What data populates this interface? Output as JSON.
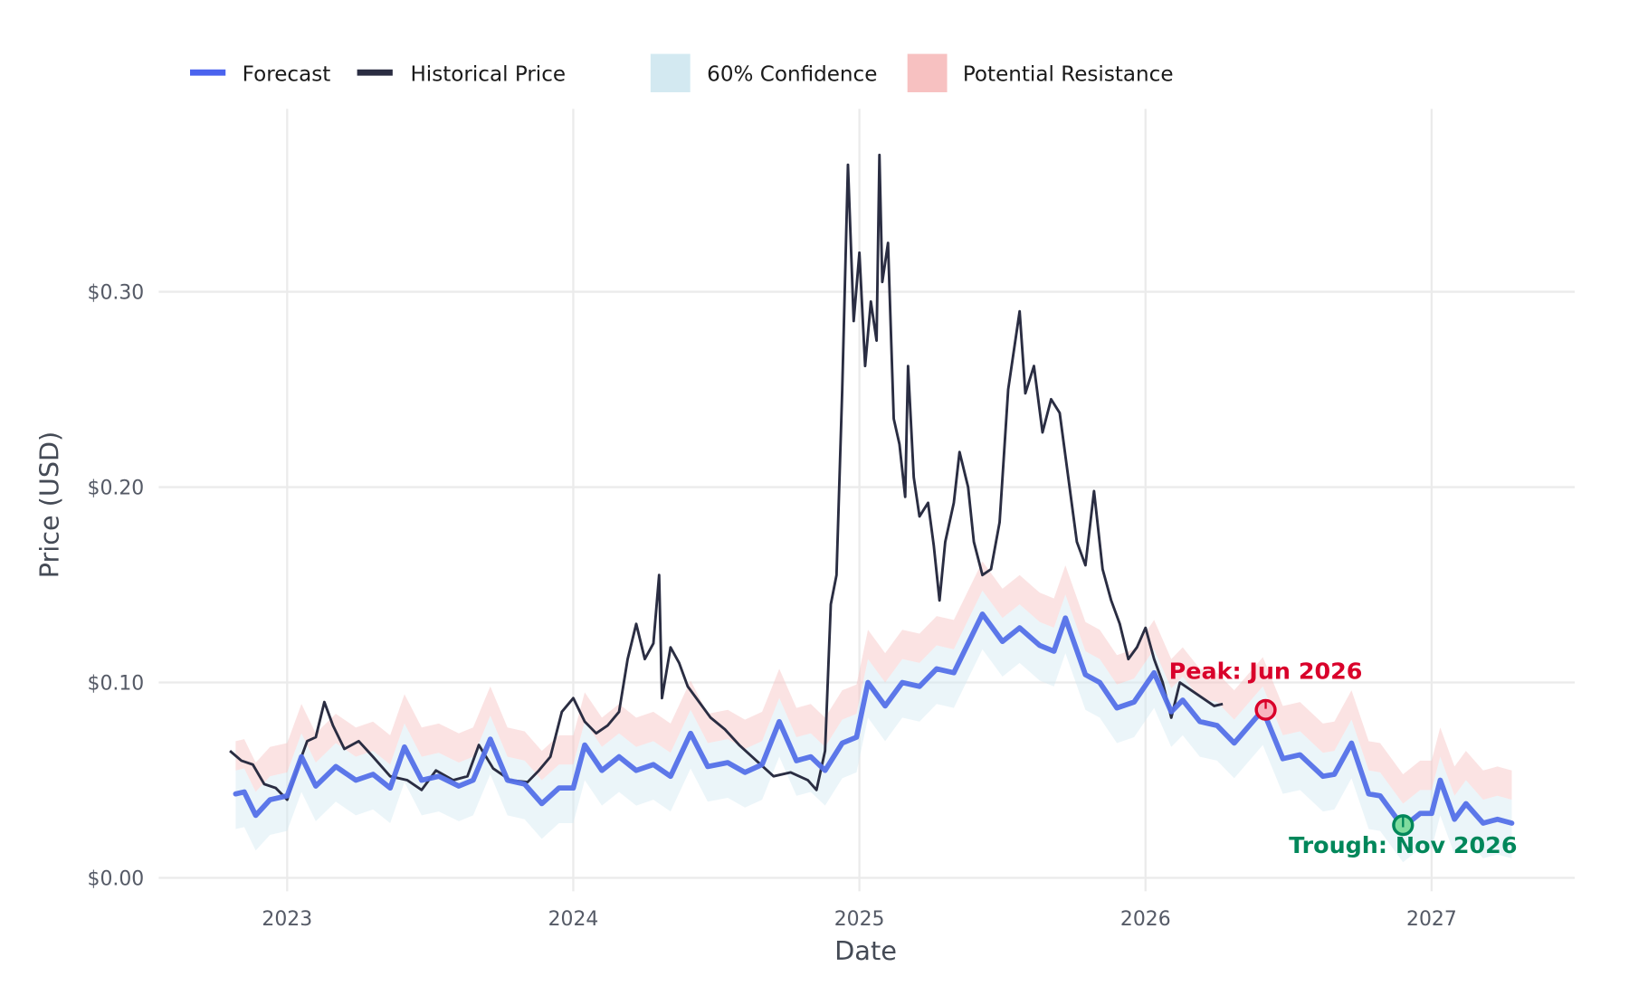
{
  "chart_data": {
    "type": "line",
    "title": "",
    "xlabel": "Date",
    "ylabel": "Price (USD)",
    "xlim": [
      2022.55,
      2027.5
    ],
    "ylim": [
      -0.008,
      0.395
    ],
    "grid": true,
    "legend_placement": "top-left",
    "x_ticks": [
      2023,
      2024,
      2025,
      2026,
      2027
    ],
    "x_tick_labels": [
      "2023",
      "2024",
      "2025",
      "2026",
      "2027"
    ],
    "y_ticks": [
      0,
      0.1,
      0.2,
      0.3
    ],
    "y_tick_labels": [
      "$0.00",
      "$0.10",
      "$0.20",
      "$0.30"
    ],
    "legend": [
      "Forecast",
      "Historical Price",
      "60% Confidence",
      "Potential Resistance"
    ],
    "colors": {
      "forecast": "#5470e8",
      "historical": "#2a2d42",
      "confidence": "#d3e9f1",
      "resistance": "#f7c1c1",
      "peak": "#d9002a",
      "trough": "#00875a"
    },
    "band_offsets": {
      "confidence_lower": -0.018,
      "confidence_upper": 0.012,
      "resistance_upper": 0.027
    },
    "series": [
      {
        "name": "Historical Price",
        "points": [
          [
            2022.8,
            0.065
          ],
          [
            2022.84,
            0.06
          ],
          [
            2022.88,
            0.058
          ],
          [
            2022.92,
            0.048
          ],
          [
            2022.96,
            0.046
          ],
          [
            2023.0,
            0.04
          ],
          [
            2023.04,
            0.058
          ],
          [
            2023.07,
            0.07
          ],
          [
            2023.1,
            0.072
          ],
          [
            2023.13,
            0.09
          ],
          [
            2023.16,
            0.078
          ],
          [
            2023.2,
            0.066
          ],
          [
            2023.25,
            0.07
          ],
          [
            2023.3,
            0.062
          ],
          [
            2023.36,
            0.052
          ],
          [
            2023.42,
            0.05
          ],
          [
            2023.47,
            0.045
          ],
          [
            2023.52,
            0.055
          ],
          [
            2023.58,
            0.05
          ],
          [
            2023.63,
            0.052
          ],
          [
            2023.67,
            0.068
          ],
          [
            2023.72,
            0.056
          ],
          [
            2023.78,
            0.05
          ],
          [
            2023.84,
            0.049
          ],
          [
            2023.88,
            0.055
          ],
          [
            2023.92,
            0.062
          ],
          [
            2023.96,
            0.085
          ],
          [
            2024.0,
            0.092
          ],
          [
            2024.04,
            0.08
          ],
          [
            2024.08,
            0.074
          ],
          [
            2024.12,
            0.078
          ],
          [
            2024.16,
            0.085
          ],
          [
            2024.19,
            0.112
          ],
          [
            2024.22,
            0.13
          ],
          [
            2024.25,
            0.112
          ],
          [
            2024.28,
            0.12
          ],
          [
            2024.3,
            0.155
          ],
          [
            2024.31,
            0.092
          ],
          [
            2024.34,
            0.118
          ],
          [
            2024.37,
            0.11
          ],
          [
            2024.4,
            0.098
          ],
          [
            2024.44,
            0.09
          ],
          [
            2024.48,
            0.082
          ],
          [
            2024.53,
            0.076
          ],
          [
            2024.58,
            0.068
          ],
          [
            2024.64,
            0.06
          ],
          [
            2024.7,
            0.052
          ],
          [
            2024.76,
            0.054
          ],
          [
            2024.82,
            0.05
          ],
          [
            2024.85,
            0.045
          ],
          [
            2024.88,
            0.065
          ],
          [
            2024.9,
            0.14
          ],
          [
            2024.92,
            0.155
          ],
          [
            2024.94,
            0.25
          ],
          [
            2024.96,
            0.365
          ],
          [
            2024.98,
            0.285
          ],
          [
            2025.0,
            0.32
          ],
          [
            2025.02,
            0.262
          ],
          [
            2025.04,
            0.295
          ],
          [
            2025.06,
            0.275
          ],
          [
            2025.07,
            0.37
          ],
          [
            2025.08,
            0.305
          ],
          [
            2025.1,
            0.325
          ],
          [
            2025.12,
            0.235
          ],
          [
            2025.14,
            0.222
          ],
          [
            2025.16,
            0.195
          ],
          [
            2025.17,
            0.262
          ],
          [
            2025.19,
            0.205
          ],
          [
            2025.21,
            0.185
          ],
          [
            2025.24,
            0.192
          ],
          [
            2025.26,
            0.17
          ],
          [
            2025.28,
            0.142
          ],
          [
            2025.3,
            0.172
          ],
          [
            2025.33,
            0.192
          ],
          [
            2025.35,
            0.218
          ],
          [
            2025.38,
            0.2
          ],
          [
            2025.4,
            0.172
          ],
          [
            2025.43,
            0.155
          ],
          [
            2025.46,
            0.158
          ],
          [
            2025.49,
            0.182
          ],
          [
            2025.52,
            0.25
          ],
          [
            2025.54,
            0.27
          ],
          [
            2025.56,
            0.29
          ],
          [
            2025.58,
            0.248
          ],
          [
            2025.61,
            0.262
          ],
          [
            2025.64,
            0.228
          ],
          [
            2025.67,
            0.245
          ],
          [
            2025.7,
            0.238
          ],
          [
            2025.73,
            0.205
          ],
          [
            2025.76,
            0.172
          ],
          [
            2025.79,
            0.16
          ],
          [
            2025.82,
            0.198
          ],
          [
            2025.85,
            0.158
          ],
          [
            2025.88,
            0.142
          ],
          [
            2025.91,
            0.13
          ],
          [
            2025.94,
            0.112
          ],
          [
            2025.97,
            0.118
          ],
          [
            2026.0,
            0.128
          ],
          [
            2026.03,
            0.112
          ],
          [
            2026.06,
            0.1
          ],
          [
            2026.09,
            0.082
          ],
          [
            2026.12,
            0.1
          ],
          [
            2026.16,
            0.096
          ],
          [
            2026.2,
            0.092
          ],
          [
            2026.24,
            0.088
          ],
          [
            2026.27,
            0.089
          ]
        ]
      },
      {
        "name": "Forecast",
        "points": [
          [
            2022.82,
            0.043
          ],
          [
            2022.85,
            0.044
          ],
          [
            2022.89,
            0.032
          ],
          [
            2022.94,
            0.04
          ],
          [
            2023.0,
            0.042
          ],
          [
            2023.05,
            0.062
          ],
          [
            2023.1,
            0.047
          ],
          [
            2023.17,
            0.057
          ],
          [
            2023.24,
            0.05
          ],
          [
            2023.3,
            0.053
          ],
          [
            2023.36,
            0.046
          ],
          [
            2023.41,
            0.067
          ],
          [
            2023.47,
            0.05
          ],
          [
            2023.53,
            0.052
          ],
          [
            2023.6,
            0.047
          ],
          [
            2023.65,
            0.05
          ],
          [
            2023.71,
            0.071
          ],
          [
            2023.77,
            0.05
          ],
          [
            2023.83,
            0.048
          ],
          [
            2023.89,
            0.038
          ],
          [
            2023.95,
            0.046
          ],
          [
            2024.0,
            0.046
          ],
          [
            2024.04,
            0.068
          ],
          [
            2024.1,
            0.055
          ],
          [
            2024.16,
            0.062
          ],
          [
            2024.22,
            0.055
          ],
          [
            2024.28,
            0.058
          ],
          [
            2024.34,
            0.052
          ],
          [
            2024.41,
            0.074
          ],
          [
            2024.47,
            0.057
          ],
          [
            2024.54,
            0.059
          ],
          [
            2024.6,
            0.054
          ],
          [
            2024.66,
            0.058
          ],
          [
            2024.72,
            0.08
          ],
          [
            2024.78,
            0.06
          ],
          [
            2024.83,
            0.062
          ],
          [
            2024.88,
            0.055
          ],
          [
            2024.94,
            0.069
          ],
          [
            2024.99,
            0.072
          ],
          [
            2025.03,
            0.1
          ],
          [
            2025.09,
            0.088
          ],
          [
            2025.15,
            0.1
          ],
          [
            2025.21,
            0.098
          ],
          [
            2025.27,
            0.107
          ],
          [
            2025.33,
            0.105
          ],
          [
            2025.43,
            0.135
          ],
          [
            2025.5,
            0.121
          ],
          [
            2025.56,
            0.128
          ],
          [
            2025.63,
            0.119
          ],
          [
            2025.68,
            0.116
          ],
          [
            2025.72,
            0.133
          ],
          [
            2025.79,
            0.104
          ],
          [
            2025.84,
            0.1
          ],
          [
            2025.9,
            0.087
          ],
          [
            2025.96,
            0.09
          ],
          [
            2026.03,
            0.105
          ],
          [
            2026.09,
            0.085
          ],
          [
            2026.13,
            0.091
          ],
          [
            2026.19,
            0.08
          ],
          [
            2026.25,
            0.078
          ],
          [
            2026.31,
            0.069
          ],
          [
            2026.41,
            0.086
          ],
          [
            2026.48,
            0.061
          ],
          [
            2026.54,
            0.063
          ],
          [
            2026.62,
            0.052
          ],
          [
            2026.66,
            0.053
          ],
          [
            2026.72,
            0.069
          ],
          [
            2026.78,
            0.043
          ],
          [
            2026.82,
            0.042
          ],
          [
            2026.9,
            0.026
          ],
          [
            2026.96,
            0.033
          ],
          [
            2027.0,
            0.033
          ],
          [
            2027.03,
            0.05
          ],
          [
            2027.08,
            0.03
          ],
          [
            2027.12,
            0.038
          ],
          [
            2027.18,
            0.028
          ],
          [
            2027.23,
            0.03
          ],
          [
            2027.28,
            0.028
          ]
        ]
      }
    ],
    "annotations": [
      {
        "label": "Peak: Jun 2026",
        "x": 2026.42,
        "y": 0.086,
        "type": "peak"
      },
      {
        "label": "Trough: Nov 2026",
        "x": 2026.9,
        "y": 0.027,
        "type": "trough"
      }
    ]
  }
}
